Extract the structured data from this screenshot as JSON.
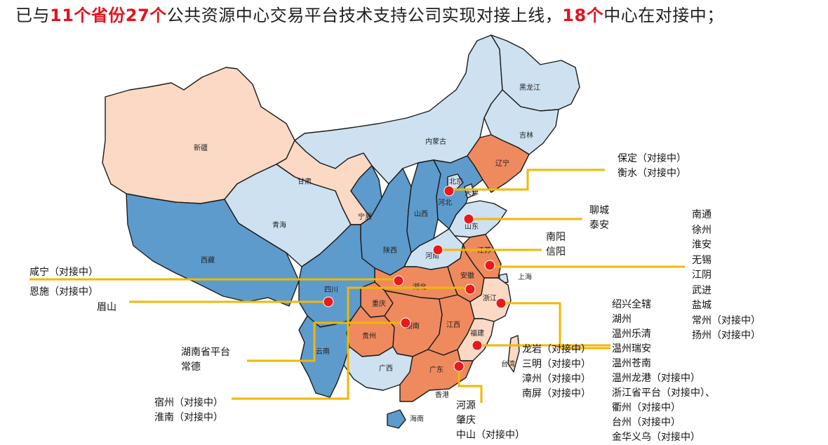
{
  "headline": {
    "prefix": "已与",
    "hl1": "11个省份27个",
    "middle": "公共资源中心交易平台技术支持公司实现对接上线，",
    "hl2": "18个",
    "suffix": "中心在对接中；"
  },
  "colors": {
    "dark_orange": "#ef8a5e",
    "light_peach": "#fbd9c4",
    "mid_blue": "#5d9bcc",
    "light_blue": "#cde1f0",
    "marker": "#e81a1a",
    "leader": "#f2b705"
  },
  "provinces": {
    "heilongjiang": "黑龙江",
    "jilin": "吉林",
    "liaoning": "辽宁",
    "neimenggu": "内蒙古",
    "xinjiang": "新疆",
    "gansu": "甘肃",
    "qinghai": "青海",
    "xizang": "西藏",
    "ningxia": "宁夏",
    "shaanxi": "陕西",
    "shanxi": "山西",
    "hebei": "河北",
    "beijing": "北京",
    "tianjin": "天津",
    "shandong": "山东",
    "henan": "河南",
    "jiangsu": "江苏",
    "shanghai": "上海",
    "anhui": "安徽",
    "hubei": "湖北",
    "sichuan": "四川",
    "chongqing": "重庆",
    "hunan": "湖南",
    "jiangxi": "江西",
    "zhejiang": "浙江",
    "fujian": "福建",
    "taiwan": "台湾",
    "guizhou": "贵州",
    "yunnan": "云南",
    "guangxi": "广西",
    "guangdong": "广东",
    "hongkong": "香港",
    "hainan": "海南"
  },
  "annotations": {
    "hebei": [
      "保定（对接中）",
      "衡水（对接中）"
    ],
    "shandong": [
      "聊城",
      "泰安"
    ],
    "henan": [
      "南阳",
      "信阳"
    ],
    "jiangsu": [
      "南通",
      "徐州",
      "淮安",
      "无锡",
      "江阴",
      "武进",
      "盐城",
      "常州（对接中）",
      "扬州（对接中）"
    ],
    "hubei": [
      "咸宁（对接中）",
      "恩施（对接中）"
    ],
    "sichuan": [
      "眉山"
    ],
    "hunan": [
      "湖南省平台",
      "常德"
    ],
    "anhui": [
      "宿州（对接中）",
      "淮南（对接中）"
    ],
    "guangdong": [
      "河源",
      "肇庆",
      "中山（对接中）"
    ],
    "fujian": [
      "龙岩（对接中）",
      "三明（对接中）",
      "漳州（对接中）",
      "南屏（对接中）"
    ],
    "zhejiang": [
      "绍兴全辖",
      "湖州",
      "温州乐清",
      "温州瑞安",
      "温州苍南",
      "温州龙港（对接中）",
      "浙江省平台（对接中）、",
      "衢州（对接中）",
      "台州（对接中）",
      "金华义乌（对接中）"
    ]
  }
}
